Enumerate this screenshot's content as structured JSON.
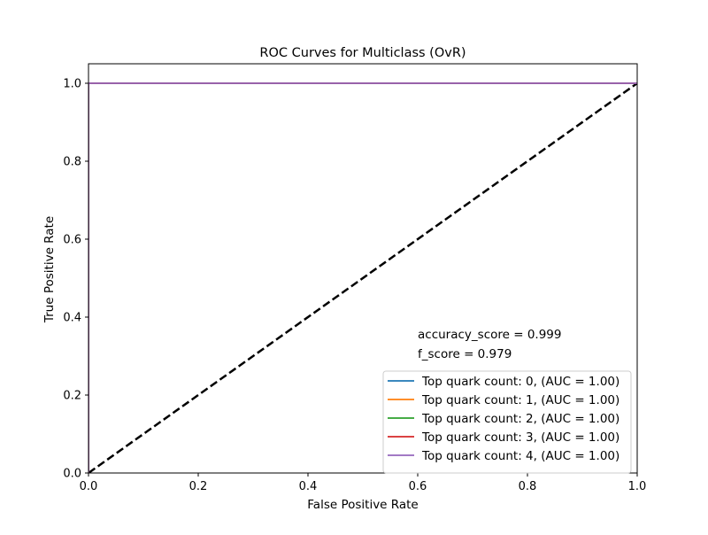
{
  "chart_data": {
    "type": "line",
    "title": "ROC Curves for Multiclass (OvR)",
    "xlabel": "False Positive Rate",
    "ylabel": "True Positive Rate",
    "xlim": [
      0.0,
      1.0
    ],
    "ylim": [
      0.0,
      1.05
    ],
    "x_ticks": [
      "0.0",
      "0.2",
      "0.4",
      "0.6",
      "0.8",
      "1.0"
    ],
    "y_ticks": [
      "0.0",
      "0.2",
      "0.4",
      "0.6",
      "0.8",
      "1.0"
    ],
    "grid": false,
    "legend_position": "lower-right",
    "series": [
      {
        "name": "Top quark count: 0, (AUC = 1.00)",
        "color": "#1f77b4",
        "x": [
          0.0,
          0.0,
          1.0
        ],
        "y": [
          0.0,
          1.0,
          1.0
        ]
      },
      {
        "name": "Top quark count: 1, (AUC = 1.00)",
        "color": "#ff7f0e",
        "x": [
          0.0,
          0.0,
          1.0
        ],
        "y": [
          0.0,
          1.0,
          1.0
        ]
      },
      {
        "name": "Top quark count: 2, (AUC = 1.00)",
        "color": "#2ca02c",
        "x": [
          0.0,
          0.0,
          1.0
        ],
        "y": [
          0.0,
          1.0,
          1.0
        ]
      },
      {
        "name": "Top quark count: 3, (AUC = 1.00)",
        "color": "#d62728",
        "x": [
          0.0,
          0.0,
          1.0
        ],
        "y": [
          0.0,
          1.0,
          1.0
        ]
      },
      {
        "name": "Top quark count: 4, (AUC = 1.00)",
        "color": "#9467bd",
        "x": [
          0.0,
          0.0,
          1.0
        ],
        "y": [
          0.0,
          1.0,
          1.0
        ]
      }
    ],
    "reference_line": {
      "x": [
        0.0,
        1.0
      ],
      "y": [
        0.0,
        1.0
      ],
      "color": "#000000",
      "style": "dashed"
    },
    "annotations": [
      {
        "text": "accuracy_score = 0.999",
        "x": 0.6,
        "y": 0.35
      },
      {
        "text": "f_score = 0.979",
        "x": 0.6,
        "y": 0.3
      }
    ]
  }
}
